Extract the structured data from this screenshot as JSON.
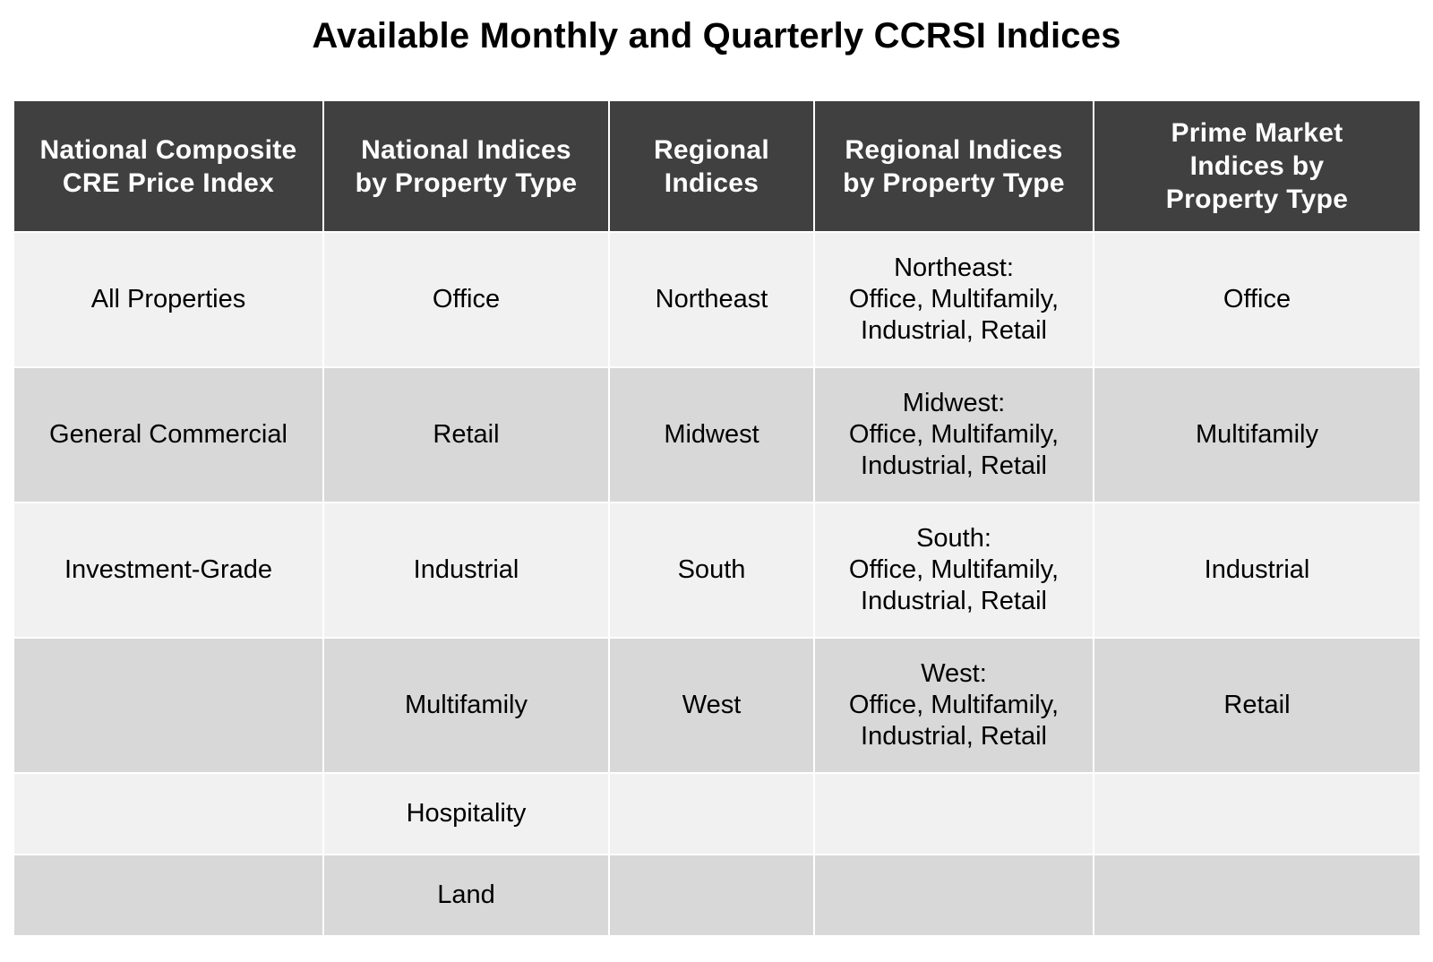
{
  "title": "Available Monthly and Quarterly CCRSI Indices",
  "headers": {
    "col1_line1": "National Composite",
    "col1_line2": "CRE Price Index",
    "col2_line1": "National Indices",
    "col2_line2": "by Property Type",
    "col3_line1": "Regional",
    "col3_line2": "Indices",
    "col4_line1": "Regional Indices",
    "col4_line2": "by Property Type",
    "col5_line1": "Prime Market",
    "col5_line2": "Indices by",
    "col5_line3": "Property Type"
  },
  "rows": [
    {
      "national_composite": "All Properties",
      "national_by_type": "Office",
      "regional": "Northeast",
      "regional_by_type_name": "Northeast:",
      "regional_by_type_line1": "Office, Multifamily,",
      "regional_by_type_line2": "Industrial, Retail",
      "prime_market": "Office"
    },
    {
      "national_composite": "General Commercial",
      "national_by_type": "Retail",
      "regional": "Midwest",
      "regional_by_type_name": "Midwest:",
      "regional_by_type_line1": "Office, Multifamily,",
      "regional_by_type_line2": "Industrial, Retail",
      "prime_market": "Multifamily"
    },
    {
      "national_composite": "Investment-Grade",
      "national_by_type": "Industrial",
      "regional": "South",
      "regional_by_type_name": "South:",
      "regional_by_type_line1": "Office, Multifamily,",
      "regional_by_type_line2": "Industrial, Retail",
      "prime_market": "Industrial"
    },
    {
      "national_composite": "",
      "national_by_type": "Multifamily",
      "regional": "West",
      "regional_by_type_name": "West:",
      "regional_by_type_line1": "Office, Multifamily,",
      "regional_by_type_line2": "Industrial, Retail",
      "prime_market": "Retail"
    },
    {
      "national_composite": "",
      "national_by_type": "Hospitality",
      "regional": "",
      "regional_by_type_name": "",
      "regional_by_type_line1": "",
      "regional_by_type_line2": "",
      "prime_market": ""
    },
    {
      "national_composite": "",
      "national_by_type": "Land",
      "regional": "",
      "regional_by_type_name": "",
      "regional_by_type_line1": "",
      "regional_by_type_line2": "",
      "prime_market": ""
    }
  ],
  "colors": {
    "header_bg": "#404040",
    "header_text": "#ffffff",
    "row_light": "#f1f1f1",
    "row_dark": "#d8d8d8"
  }
}
